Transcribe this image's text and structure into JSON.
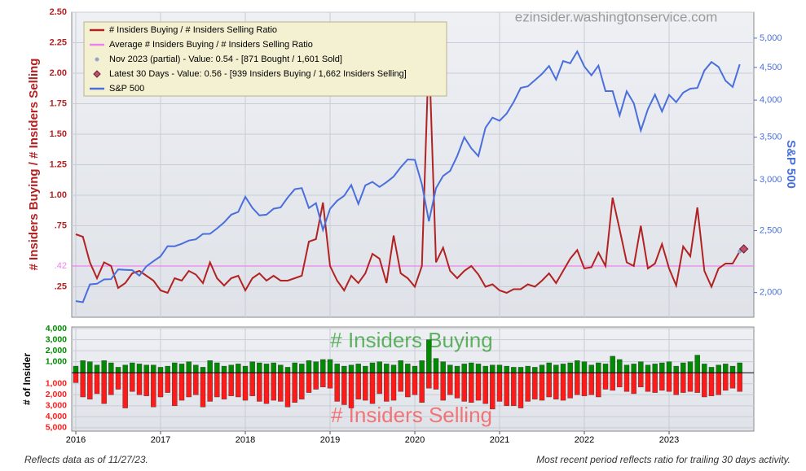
{
  "chart_data": [
    {
      "type": "line",
      "ylabel": "# Insiders Buying / # Insiders Selling",
      "y2label": "S&P 500",
      "watermark": "ezinsider.washingtonservice.com",
      "grid": true,
      "ylim": [
        0,
        2.5
      ],
      "yticks": [
        {
          "value": 0.25,
          "label": ".25"
        },
        {
          "value": 0.75,
          "label": ".75"
        },
        {
          "value": 1,
          "label": "1.00"
        },
        {
          "value": 1.25,
          "label": "1.25"
        },
        {
          "value": 1.5,
          "label": "1.50"
        },
        {
          "value": 1.75,
          "label": "1.75"
        },
        {
          "value": 2,
          "label": "2.00"
        },
        {
          "value": 2.25,
          "label": "2.25"
        },
        {
          "value": 2.5,
          "label": "2.50"
        }
      ],
      "y2lim": [
        1830,
        5490
      ],
      "y2scale": "log",
      "y2ticks": [
        {
          "value": 2000,
          "label": "2,000"
        },
        {
          "value": 2500,
          "label": "2,500"
        },
        {
          "value": 3000,
          "label": "3,000"
        },
        {
          "value": 3500,
          "label": "3,500"
        },
        {
          "value": 4000,
          "label": "4,000"
        },
        {
          "value": 4500,
          "label": "4,500"
        },
        {
          "value": 5000,
          "label": "5,000"
        }
      ],
      "series": [
        {
          "name": "# Insiders Buying / # Insiders Selling Ratio",
          "color": "#b22222",
          "values": [
            0.68,
            0.66,
            0.45,
            0.32,
            0.45,
            0.42,
            0.24,
            0.28,
            0.36,
            0.38,
            0.34,
            0.3,
            0.22,
            0.2,
            0.32,
            0.3,
            0.38,
            0.35,
            0.28,
            0.45,
            0.32,
            0.26,
            0.32,
            0.34,
            0.22,
            0.32,
            0.36,
            0.3,
            0.34,
            0.3,
            0.3,
            0.32,
            0.34,
            0.62,
            0.64,
            0.94,
            0.42,
            0.3,
            0.22,
            0.34,
            0.28,
            0.36,
            0.52,
            0.48,
            0.28,
            0.67,
            0.36,
            0.32,
            0.25,
            0.42,
            2.2,
            0.45,
            0.57,
            0.38,
            0.32,
            0.38,
            0.42,
            0.35,
            0.25,
            0.27,
            0.22,
            0.2,
            0.23,
            0.23,
            0.27,
            0.25,
            0.3,
            0.36,
            0.28,
            0.38,
            0.48,
            0.55,
            0.4,
            0.41,
            0.53,
            0.42,
            0.98,
            0.72,
            0.45,
            0.42,
            0.75,
            0.4,
            0.44,
            0.6,
            0.4,
            0.26,
            0.58,
            0.5,
            0.9,
            0.38,
            0.25,
            0.4,
            0.44,
            0.44,
            0.54
          ]
        },
        {
          "name": "S&P 500",
          "color": "#4a6fdc",
          "axis": "y2",
          "values": [
            1940,
            1932,
            2060,
            2065,
            2097,
            2099,
            2174,
            2171,
            2168,
            2126,
            2199,
            2239,
            2279,
            2364,
            2363,
            2384,
            2412,
            2423,
            2470,
            2472,
            2519,
            2575,
            2648,
            2674,
            2824,
            2714,
            2641,
            2648,
            2705,
            2718,
            2816,
            2902,
            2914,
            2712,
            2760,
            2507,
            2704,
            2784,
            2834,
            2946,
            2752,
            2942,
            2980,
            2926,
            2977,
            3038,
            3141,
            3231,
            3226,
            2954,
            2585,
            2912,
            3044,
            3100,
            3271,
            3500,
            3363,
            3270,
            3622,
            3756,
            3714,
            3811,
            3973,
            4181,
            4204,
            4298,
            4395,
            4523,
            4308,
            4605,
            4567,
            4766,
            4516,
            4374,
            4530,
            4132,
            4132,
            3785,
            4130,
            3955,
            3586,
            3872,
            4080,
            3840,
            4077,
            3970,
            4109,
            4169,
            4180,
            4450,
            4589,
            4508,
            4288,
            4194,
            4550
          ]
        }
      ],
      "average": {
        "name": "Average # Insiders Buying / # Insiders Selling Ratio",
        "color": "#ee82ee",
        "value": 0.42,
        "value_label": ".42"
      },
      "partial": {
        "name": "Nov 2023 (partial) - Value: 0.54 - [871 Bought / 1,601 Sold]",
        "color": "#9aa0c8"
      },
      "latest": {
        "name": "Latest 30 Days - Value: 0.56 - [939 Insiders Buying / 1,662 Insiders Selling]",
        "color": "#c0506a",
        "value": 0.56
      }
    },
    {
      "type": "bar",
      "ylabel": "# of Insider",
      "categories": [
        "2016",
        null,
        null,
        null,
        null,
        null,
        null,
        null,
        null,
        null,
        null,
        null,
        "2017",
        null,
        null,
        null,
        null,
        null,
        null,
        null,
        null,
        null,
        null,
        null,
        "2018",
        null,
        null,
        null,
        null,
        null,
        null,
        null,
        null,
        null,
        null,
        null,
        "2019",
        null,
        null,
        null,
        null,
        null,
        null,
        null,
        null,
        null,
        null,
        null,
        "2020",
        null,
        null,
        null,
        null,
        null,
        null,
        null,
        null,
        null,
        null,
        null,
        "2021",
        null,
        null,
        null,
        null,
        null,
        null,
        null,
        null,
        null,
        null,
        null,
        "2022",
        null,
        null,
        null,
        null,
        null,
        null,
        null,
        null,
        null,
        null,
        null,
        "2023",
        null,
        null,
        null,
        null,
        null,
        null,
        null,
        null,
        null,
        null
      ],
      "ylim": [
        -5300,
        4150
      ],
      "yticks": [
        {
          "value": -5000,
          "label": "5,000"
        },
        {
          "value": -4000,
          "label": "4,000"
        },
        {
          "value": -3000,
          "label": "3,000"
        },
        {
          "value": -2000,
          "label": "2,000"
        },
        {
          "value": -1000,
          "label": "1,000"
        },
        {
          "value": 1000,
          "label": "1,000"
        },
        {
          "value": 2000,
          "label": "2,000"
        },
        {
          "value": 3000,
          "label": "3,000"
        },
        {
          "value": 4000,
          "label": "4,000"
        }
      ],
      "series": [
        {
          "name": "# Insiders Buying",
          "color": "#008a00",
          "values": [
            600,
            1100,
            1000,
            700,
            1100,
            900,
            500,
            700,
            900,
            800,
            700,
            700,
            500,
            600,
            900,
            800,
            1000,
            700,
            500,
            1100,
            900,
            600,
            700,
            800,
            600,
            1000,
            900,
            800,
            900,
            700,
            500,
            900,
            800,
            1100,
            1000,
            1200,
            1200,
            800,
            600,
            700,
            800,
            600,
            900,
            1000,
            800,
            700,
            1100,
            800,
            600,
            1100,
            3000,
            1300,
            1000,
            700,
            600,
            800,
            900,
            800,
            600,
            700,
            700,
            600,
            500,
            500,
            600,
            500,
            700,
            900,
            700,
            800,
            900,
            1100,
            1000,
            700,
            900,
            800,
            1500,
            1200,
            700,
            800,
            1000,
            700,
            800,
            900,
            1000,
            600,
            900,
            1000,
            1600,
            800,
            500,
            700,
            800,
            600,
            900
          ]
        },
        {
          "name": "# Insiders Selling",
          "color": "#ff1a1a",
          "values": [
            -900,
            -2200,
            -2400,
            -1900,
            -2800,
            -2000,
            -1500,
            -3200,
            -1700,
            -2000,
            -2100,
            -3100,
            -2200,
            -1800,
            -3000,
            -2500,
            -2200,
            -2000,
            -3100,
            -2600,
            -2200,
            -2400,
            -2100,
            -2200,
            -2500,
            -2100,
            -2600,
            -2800,
            -2500,
            -2600,
            -3100,
            -2700,
            -2400,
            -1800,
            -1500,
            -1300,
            -1400,
            -2600,
            -2900,
            -3200,
            -2400,
            -2500,
            -2800,
            -1900,
            -2600,
            -2500,
            -1700,
            -2200,
            -2000,
            -2700,
            -1400,
            -1500,
            -2500,
            -2000,
            -2300,
            -2600,
            -2700,
            -2500,
            -2800,
            -3300,
            -2600,
            -3000,
            -3000,
            -3200,
            -2600,
            -2400,
            -2500,
            -2200,
            -2400,
            -2500,
            -2300,
            -2000,
            -2100,
            -2000,
            -2200,
            -1500,
            -1600,
            -1300,
            -1700,
            -1900,
            -1300,
            -1700,
            -1800,
            -1600,
            -1700,
            -2000,
            -1800,
            -1700,
            -1800,
            -2200,
            -2100,
            -2000,
            -1600,
            -1400,
            -1700
          ]
        }
      ]
    }
  ],
  "footnotes": [
    "Reflects data as of 11/27/23.",
    "Most recent period reflects ratio for trailing 30 days activity."
  ]
}
